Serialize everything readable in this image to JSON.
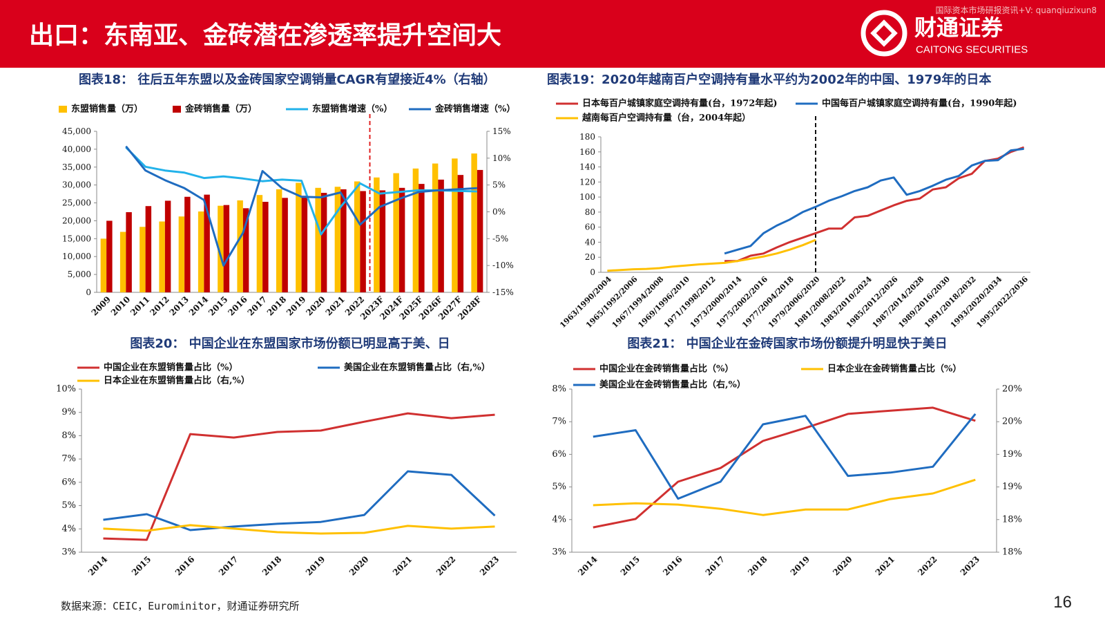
{
  "header": {
    "title": "出口：东南亚、金砖潜在渗透率提升空间大",
    "logo_name": "财通证券",
    "logo_en": "CAITONG SECURITIES",
    "watermark": "国际资本市场研报资讯+V: quanqiuzixun8"
  },
  "chart_data": [
    {
      "type": "bar",
      "title": "图表18： 往后五年东盟以及金砖国家空调销量CAGR有望接近4%（右轴）",
      "categories": [
        "2009",
        "2010",
        "2011",
        "2012",
        "2013",
        "2014",
        "2015",
        "2016",
        "2017",
        "2018",
        "2019",
        "2020",
        "2021",
        "2022",
        "2023F",
        "2024F",
        "2025F",
        "2026F",
        "2027F",
        "2028F"
      ],
      "series": [
        {
          "name": "东盟销售量（万）",
          "type": "bar",
          "color": "#ffc000",
          "values": [
            15000,
            16900,
            18300,
            19800,
            21200,
            22600,
            24200,
            25700,
            27200,
            28800,
            30600,
            29200,
            29500,
            31000,
            32100,
            33300,
            34600,
            36000,
            37400,
            38800
          ]
        },
        {
          "name": "金砖销售量（万）",
          "type": "bar",
          "color": "#c00000",
          "values": [
            20000,
            22400,
            24100,
            25600,
            26700,
            27300,
            24400,
            23500,
            25300,
            26400,
            27000,
            27800,
            28800,
            28300,
            28500,
            29200,
            30300,
            31500,
            32800,
            34200
          ]
        },
        {
          "name": "东盟销售增速（%）",
          "type": "line",
          "axis": "y2",
          "color": "#22b2ea",
          "values": [
            null,
            12,
            8.4,
            7.7,
            7.3,
            6.3,
            6.6,
            6.2,
            5.7,
            6.0,
            5.8,
            -4.2,
            0.9,
            5.3,
            3.4,
            3.7,
            4.0,
            4.0,
            3.9,
            3.8
          ]
        },
        {
          "name": "金砖销售增速（%）",
          "type": "line",
          "axis": "y2",
          "color": "#1f6cc0",
          "values": [
            null,
            12.2,
            7.7,
            5.9,
            4.4,
            2.2,
            -10,
            -3.9,
            7.6,
            4.4,
            2.8,
            2.7,
            3.6,
            -2.4,
            0.9,
            2.4,
            3.7,
            4.0,
            4.2,
            4.4
          ]
        }
      ],
      "ylim": [
        0,
        45000
      ],
      "yticks": [
        0,
        {
          "value": 5000,
          "label": "5,000"
        },
        {
          "value": 10000,
          "label": "10,000"
        },
        {
          "value": 15000,
          "label": "15,000"
        },
        {
          "value": 20000,
          "label": "20,000"
        },
        {
          "value": 25000,
          "label": "25,000"
        },
        {
          "value": 30000,
          "label": "30,000"
        },
        {
          "value": 35000,
          "label": "35,000"
        },
        {
          "value": 40000,
          "label": "40,000"
        },
        {
          "value": 45000,
          "label": "45,000"
        }
      ],
      "y2lim": [
        -15,
        15
      ],
      "y2ticks": [
        {
          "value": -15,
          "label": "-15%"
        },
        {
          "value": -10,
          "label": "-10%"
        },
        {
          "value": -5,
          "label": "-5%"
        },
        {
          "value": 0,
          "label": "0%"
        },
        {
          "value": 5,
          "label": "5%"
        },
        {
          "value": 10,
          "label": "10%"
        },
        {
          "value": 15,
          "label": "15%"
        }
      ]
    },
    {
      "type": "line",
      "title": "图表19：2020年越南百户空调持有量水平约为2002年的中国、1979年的日本",
      "categories": [
        "1963/1990/2004",
        null,
        "1965/1992/2006",
        null,
        "1967/1994/2008",
        null,
        "1969/1996/2010",
        null,
        "1971/1998/2012",
        null,
        "1973/2000/2014",
        null,
        "1975/2002/2016",
        null,
        "1977/2004/2018",
        null,
        "1979/2006/2020",
        null,
        "1981/2008/2022",
        null,
        "1983/2010/2024",
        null,
        "1985/2012/2026",
        null,
        "1987/2014/2028",
        null,
        "1989/2016/2030",
        null,
        "1991/2018/2032",
        null,
        "1993/2020/2034",
        null,
        "1995/2022/2036"
      ],
      "series": [
        {
          "name": "日本每百户城镇家庭空调持有量(台，1972年起)",
          "color": "#d03030",
          "values": [
            null,
            null,
            null,
            null,
            null,
            null,
            null,
            null,
            null,
            15,
            15,
            22,
            25,
            33,
            40,
            46,
            52,
            58,
            58,
            73,
            75,
            82,
            89,
            95,
            98,
            110,
            113,
            125,
            131,
            148,
            151,
            160,
            166
          ]
        },
        {
          "name": "中国每百户城镇家庭空调持有量(台，1990年起)",
          "color": "#1f6cc0",
          "values": [
            null,
            null,
            null,
            null,
            null,
            null,
            null,
            null,
            null,
            25,
            30,
            35,
            52,
            62,
            70,
            80,
            87,
            95,
            101,
            108,
            113,
            122,
            126,
            103,
            108,
            115,
            123,
            128,
            142,
            148,
            149,
            162,
            164
          ]
        },
        {
          "name": "越南每百户空调持有量（台，2004年起）",
          "color": "#ffc000",
          "values": [
            2,
            3,
            4,
            4.5,
            5.5,
            7.5,
            9,
            10.5,
            11.5,
            12.5,
            15,
            18,
            21,
            25,
            30,
            36,
            43,
            null,
            null,
            null,
            null,
            null,
            null,
            null,
            null,
            null,
            null,
            null,
            null,
            null,
            null,
            null,
            null
          ]
        }
      ],
      "ylim": [
        0,
        180
      ],
      "yticks": [
        0,
        20,
        40,
        60,
        80,
        100,
        120,
        140,
        160,
        180
      ]
    },
    {
      "type": "line",
      "title": "图表20： 中国企业在东盟国家市场份额已明显高于美、日",
      "categories": [
        "2014",
        "2015",
        "2016",
        "2017",
        "2018",
        "2019",
        "2020",
        "2021",
        "2022",
        "2023"
      ],
      "series": [
        {
          "name": "中国企业在东盟销售量占比（%）",
          "color": "#d03030",
          "values": [
            3.59,
            3.53,
            8.07,
            7.92,
            8.16,
            8.22,
            8.6,
            8.96,
            8.75,
            8.9
          ]
        },
        {
          "name": "美国企业在东盟销售量占比（右,%）",
          "color": "#1f6cc0",
          "values": [
            4.39,
            4.63,
            3.95,
            4.1,
            4.22,
            4.3,
            4.6,
            6.47,
            6.32,
            4.57
          ]
        },
        {
          "name": "日本企业在东盟销售量占比（右,%）",
          "color": "#ffc000",
          "values": [
            4.01,
            3.92,
            4.16,
            4.01,
            3.86,
            3.8,
            3.83,
            4.13,
            4.01,
            4.1
          ]
        }
      ],
      "ylim": [
        3,
        10
      ],
      "yticks": [
        {
          "value": 3,
          "label": "3%"
        },
        {
          "value": 4,
          "label": "4%"
        },
        {
          "value": 5,
          "label": "5%"
        },
        {
          "value": 6,
          "label": "6%"
        },
        {
          "value": 7,
          "label": "7%"
        },
        {
          "value": 8,
          "label": "8%"
        },
        {
          "value": 9,
          "label": "9%"
        },
        {
          "value": 10,
          "label": "10%"
        }
      ]
    },
    {
      "type": "line",
      "title": "图表21： 中国企业在金砖国家市场份额提升明显快于美日",
      "categories": [
        "2014",
        "2015",
        "2016",
        "2017",
        "2018",
        "2019",
        "2020",
        "2021",
        "2022",
        "2023"
      ],
      "series": [
        {
          "name": "中国企业在金砖销售量占比（%）",
          "color": "#d03030",
          "values": [
            3.76,
            4.02,
            5.16,
            5.58,
            6.41,
            6.81,
            7.24,
            7.34,
            7.43,
            7.03
          ]
        },
        {
          "name": "日本企业在金砖销售量占比（%）",
          "color": "#ffc000",
          "values": [
            4.44,
            4.5,
            4.46,
            4.33,
            4.14,
            4.31,
            4.31,
            4.63,
            4.8,
            5.22
          ]
        },
        {
          "name": "美国企业在金砖销售量占比（右,%）",
          "color": "#1f6cc0",
          "axis": "y2",
          "values": [
            19.27,
            19.37,
            18.32,
            18.58,
            19.46,
            19.59,
            18.67,
            18.72,
            18.81,
            19.62
          ]
        }
      ],
      "ylim": [
        3,
        8
      ],
      "yticks": [
        {
          "value": 3,
          "label": "3%"
        },
        {
          "value": 4,
          "label": "4%"
        },
        {
          "value": 5,
          "label": "5%"
        },
        {
          "value": 6,
          "label": "6%"
        },
        {
          "value": 7,
          "label": "7%"
        },
        {
          "value": 8,
          "label": "8%"
        }
      ],
      "y2lim": [
        17.5,
        20
      ],
      "y2ticks": [
        {
          "value": 17.5,
          "label": "18%"
        },
        {
          "value": 18,
          "label": "18%"
        },
        {
          "value": 18.5,
          "label": "19%"
        },
        {
          "value": 19,
          "label": "19%"
        },
        {
          "value": 19.5,
          "label": "20%"
        },
        {
          "value": 20,
          "label": "20%"
        }
      ]
    }
  ],
  "footer": {
    "source": "数据来源：CEIC，Eurominitor，财通证券研究所",
    "page": 16
  }
}
